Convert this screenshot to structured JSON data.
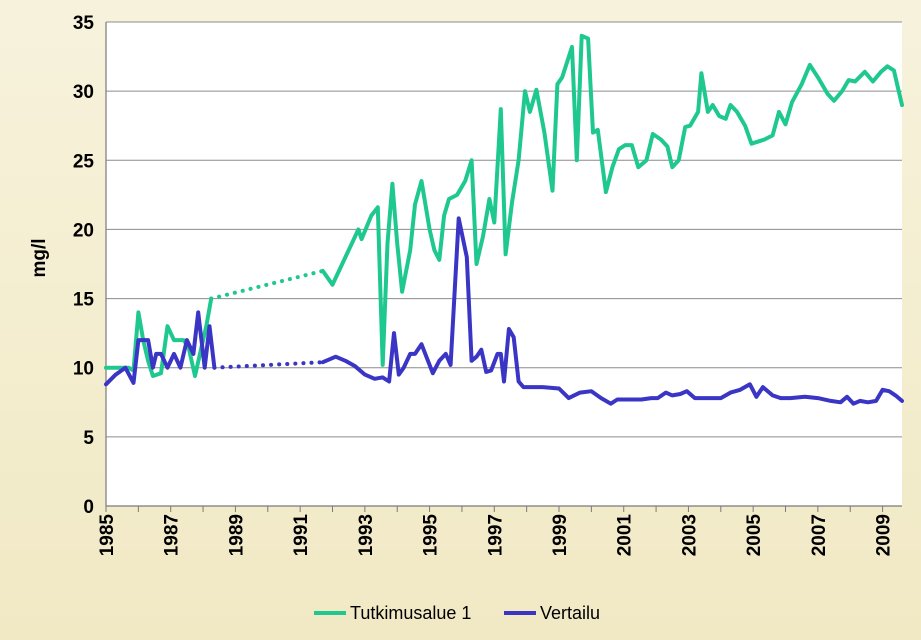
{
  "chart_data": {
    "type": "line",
    "title": "",
    "xlabel": "",
    "ylabel": "mg/l",
    "ylim": [
      0,
      35
    ],
    "xlim": [
      1985,
      2009.6
    ],
    "yticks": [
      "0",
      "5",
      "10",
      "15",
      "20",
      "25",
      "30",
      "35"
    ],
    "xticks": [
      "1985",
      "1987",
      "1989",
      "1991",
      "1993",
      "1995",
      "1997",
      "1999",
      "2001",
      "2003",
      "2005",
      "2007",
      "2009"
    ],
    "grid": "horizontal",
    "legend": "bottom",
    "series": [
      {
        "name": "Tutkimusalue 1",
        "color": "#1fc88f",
        "segments": [
          {
            "style": "solid",
            "points": [
              [
                1985.0,
                10
              ],
              [
                1985.5,
                10
              ],
              [
                1985.7,
                10
              ],
              [
                1985.85,
                9.8
              ],
              [
                1986.0,
                14
              ],
              [
                1986.15,
                12
              ],
              [
                1986.3,
                10.5
              ],
              [
                1986.45,
                9.4
              ],
              [
                1986.7,
                9.6
              ],
              [
                1986.9,
                13
              ],
              [
                1987.1,
                12
              ],
              [
                1987.4,
                12
              ],
              [
                1987.55,
                11.5
              ],
              [
                1987.75,
                9.4
              ],
              [
                1987.95,
                11.5
              ],
              [
                1988.1,
                13
              ],
              [
                1988.25,
                15
              ]
            ]
          },
          {
            "style": "dotted",
            "points": [
              [
                1988.25,
                15
              ],
              [
                1991.7,
                17
              ]
            ]
          },
          {
            "style": "solid",
            "points": [
              [
                1991.7,
                17
              ],
              [
                1992.0,
                16
              ],
              [
                1992.3,
                17.5
              ],
              [
                1992.6,
                19
              ],
              [
                1992.8,
                20
              ],
              [
                1992.9,
                19.3
              ],
              [
                1993.2,
                21
              ],
              [
                1993.4,
                21.6
              ],
              [
                1993.55,
                10.2
              ],
              [
                1993.7,
                19
              ],
              [
                1993.85,
                23.3
              ],
              [
                1994.0,
                19
              ],
              [
                1994.15,
                15.5
              ],
              [
                1994.4,
                18.5
              ],
              [
                1994.55,
                21.8
              ],
              [
                1994.75,
                23.5
              ],
              [
                1995.0,
                20
              ],
              [
                1995.15,
                18.5
              ],
              [
                1995.3,
                17.8
              ],
              [
                1995.45,
                21
              ],
              [
                1995.6,
                22.2
              ],
              [
                1995.85,
                22.5
              ],
              [
                1996.1,
                23.5
              ],
              [
                1996.3,
                25
              ],
              [
                1996.45,
                17.5
              ],
              [
                1996.65,
                19.5
              ],
              [
                1996.85,
                22.2
              ],
              [
                1997.0,
                20.5
              ],
              [
                1997.2,
                28.7
              ],
              [
                1997.35,
                18.2
              ],
              [
                1997.55,
                22
              ],
              [
                1997.75,
                25
              ],
              [
                1997.95,
                30
              ],
              [
                1998.1,
                28.5
              ],
              [
                1998.3,
                30.1
              ],
              [
                1998.55,
                27
              ],
              [
                1998.8,
                22.8
              ],
              [
                1998.95,
                30.5
              ],
              [
                1999.1,
                31
              ],
              [
                1999.4,
                33.2
              ],
              [
                1999.55,
                25
              ],
              [
                1999.7,
                34
              ],
              [
                1999.9,
                33.8
              ],
              [
                2000.05,
                27
              ],
              [
                2000.2,
                27.2
              ],
              [
                2000.45,
                22.7
              ],
              [
                2000.65,
                24.5
              ],
              [
                2000.85,
                25.8
              ],
              [
                2001.05,
                26.1
              ],
              [
                2001.25,
                26.1
              ],
              [
                2001.45,
                24.5
              ],
              [
                2001.7,
                25
              ],
              [
                2001.9,
                26.9
              ],
              [
                2002.15,
                26.5
              ],
              [
                2002.35,
                26
              ],
              [
                2002.5,
                24.5
              ],
              [
                2002.7,
                25
              ],
              [
                2002.9,
                27.4
              ],
              [
                2003.05,
                27.5
              ],
              [
                2003.3,
                28.5
              ],
              [
                2003.4,
                31.3
              ],
              [
                2003.6,
                28.5
              ],
              [
                2003.75,
                29
              ],
              [
                2003.95,
                28.2
              ],
              [
                2004.15,
                28
              ],
              [
                2004.3,
                29
              ],
              [
                2004.5,
                28.5
              ],
              [
                2004.75,
                27.5
              ],
              [
                2004.95,
                26.2
              ],
              [
                2005.35,
                26.5
              ],
              [
                2005.6,
                26.8
              ],
              [
                2005.8,
                28.5
              ],
              [
                2006.0,
                27.6
              ],
              [
                2006.2,
                29.2
              ],
              [
                2006.5,
                30.5
              ],
              [
                2006.75,
                31.9
              ],
              [
                2007.0,
                31
              ],
              [
                2007.3,
                29.8
              ],
              [
                2007.5,
                29.3
              ],
              [
                2007.75,
                30
              ],
              [
                2007.95,
                30.8
              ],
              [
                2008.15,
                30.7
              ],
              [
                2008.45,
                31.4
              ],
              [
                2008.7,
                30.7
              ],
              [
                2008.95,
                31.4
              ],
              [
                2009.15,
                31.8
              ],
              [
                2009.35,
                31.5
              ],
              [
                2009.6,
                29
              ]
            ]
          }
        ]
      },
      {
        "name": "Vertailu",
        "color": "#3a35c5",
        "segments": [
          {
            "style": "solid",
            "points": [
              [
                1985.0,
                8.8
              ],
              [
                1985.3,
                9.5
              ],
              [
                1985.6,
                10
              ],
              [
                1985.85,
                8.9
              ],
              [
                1986.0,
                12
              ],
              [
                1986.15,
                12
              ],
              [
                1986.3,
                12
              ],
              [
                1986.45,
                10
              ],
              [
                1986.55,
                11
              ],
              [
                1986.7,
                11
              ],
              [
                1986.9,
                10
              ],
              [
                1987.1,
                11
              ],
              [
                1987.3,
                10
              ],
              [
                1987.5,
                12
              ],
              [
                1987.7,
                11
              ],
              [
                1987.85,
                14
              ],
              [
                1988.05,
                10
              ],
              [
                1988.2,
                13
              ],
              [
                1988.35,
                10
              ]
            ]
          },
          {
            "style": "dotted",
            "points": [
              [
                1988.35,
                10
              ],
              [
                1991.7,
                10.4
              ]
            ]
          },
          {
            "style": "solid",
            "points": [
              [
                1991.7,
                10.4
              ],
              [
                1992.1,
                10.8
              ],
              [
                1992.4,
                10.5
              ],
              [
                1992.7,
                10.1
              ],
              [
                1993.0,
                9.5
              ],
              [
                1993.3,
                9.2
              ],
              [
                1993.55,
                9.3
              ],
              [
                1993.75,
                9
              ],
              [
                1993.9,
                12.5
              ],
              [
                1994.05,
                9.5
              ],
              [
                1994.2,
                10
              ],
              [
                1994.4,
                11
              ],
              [
                1994.55,
                11
              ],
              [
                1994.75,
                11.7
              ],
              [
                1995.1,
                9.6
              ],
              [
                1995.3,
                10.5
              ],
              [
                1995.5,
                11
              ],
              [
                1995.65,
                10.2
              ],
              [
                1995.9,
                20.8
              ],
              [
                1996.15,
                18
              ],
              [
                1996.3,
                10.5
              ],
              [
                1996.45,
                10.8
              ],
              [
                1996.6,
                11.3
              ],
              [
                1996.75,
                9.7
              ],
              [
                1996.9,
                9.8
              ],
              [
                1997.1,
                11
              ],
              [
                1997.2,
                11
              ],
              [
                1997.3,
                9
              ],
              [
                1997.45,
                12.8
              ],
              [
                1997.6,
                12.2
              ],
              [
                1997.75,
                9
              ],
              [
                1997.9,
                8.6
              ],
              [
                1998.2,
                8.6
              ],
              [
                1998.5,
                8.6
              ],
              [
                1999.0,
                8.5
              ],
              [
                1999.3,
                7.8
              ],
              [
                1999.65,
                8.2
              ],
              [
                2000.0,
                8.3
              ],
              [
                2000.3,
                7.8
              ],
              [
                2000.6,
                7.4
              ],
              [
                2000.8,
                7.7
              ],
              [
                2001.2,
                7.7
              ],
              [
                2001.55,
                7.7
              ],
              [
                2001.85,
                7.8
              ],
              [
                2002.05,
                7.8
              ],
              [
                2002.3,
                8.2
              ],
              [
                2002.5,
                8
              ],
              [
                2002.75,
                8.1
              ],
              [
                2002.95,
                8.3
              ],
              [
                2003.2,
                7.8
              ],
              [
                2003.5,
                7.8
              ],
              [
                2003.8,
                7.8
              ],
              [
                2004.0,
                7.8
              ],
              [
                2004.3,
                8.2
              ],
              [
                2004.6,
                8.4
              ],
              [
                2004.9,
                8.8
              ],
              [
                2005.1,
                7.9
              ],
              [
                2005.3,
                8.6
              ],
              [
                2005.6,
                8
              ],
              [
                2005.85,
                7.8
              ],
              [
                2006.15,
                7.8
              ],
              [
                2006.6,
                7.9
              ],
              [
                2007.0,
                7.8
              ],
              [
                2007.4,
                7.6
              ],
              [
                2007.7,
                7.5
              ],
              [
                2007.9,
                7.9
              ],
              [
                2008.1,
                7.4
              ],
              [
                2008.3,
                7.6
              ],
              [
                2008.55,
                7.5
              ],
              [
                2008.8,
                7.6
              ],
              [
                2009.0,
                8.4
              ],
              [
                2009.2,
                8.3
              ],
              [
                2009.4,
                8
              ],
              [
                2009.6,
                7.6
              ]
            ]
          }
        ]
      }
    ]
  }
}
